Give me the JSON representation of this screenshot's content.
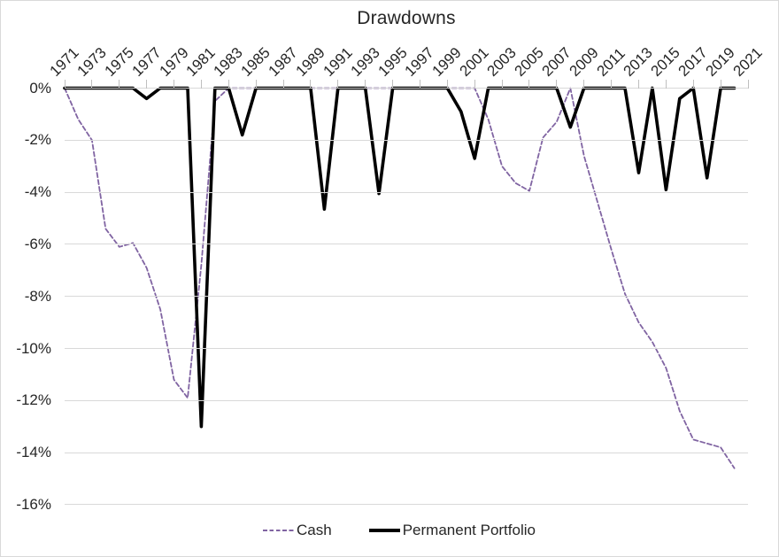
{
  "frame": {
    "background": "#ffffff",
    "border_color": "#d9d9d9"
  },
  "chart_data": {
    "type": "line",
    "title": "Drawdowns",
    "x_axis": {
      "position": "top",
      "range": [
        1971,
        2021
      ],
      "tick_interval_years": 2,
      "tick_labels": [
        "1971",
        "1973",
        "1975",
        "1977",
        "1979",
        "1981",
        "1983",
        "1985",
        "1987",
        "1989",
        "1991",
        "1993",
        "1995",
        "1997",
        "1999",
        "2001",
        "2003",
        "2005",
        "2007",
        "2009",
        "2011",
        "2013",
        "2015",
        "2017",
        "2019",
        "2021"
      ],
      "tick_color": "#bfbfbf",
      "label_color": "#262626"
    },
    "y_axis": {
      "range": [
        -16,
        0
      ],
      "unit": "percent",
      "tick_labels": [
        "0%",
        "-2%",
        "-4%",
        "-6%",
        "-8%",
        "-10%",
        "-12%",
        "-14%",
        "-16%"
      ],
      "gridlines": true,
      "gridline_color": "#d9d9d9",
      "label_color": "#262626"
    },
    "x": [
      1971,
      1972,
      1973,
      1974,
      1975,
      1976,
      1977,
      1978,
      1979,
      1980,
      1981,
      1982,
      1983,
      1984,
      1985,
      1986,
      1987,
      1988,
      1989,
      1990,
      1991,
      1992,
      1993,
      1994,
      1995,
      1996,
      1997,
      1998,
      1999,
      2000,
      2001,
      2002,
      2003,
      2004,
      2005,
      2006,
      2007,
      2008,
      2009,
      2010,
      2011,
      2012,
      2013,
      2014,
      2015,
      2016,
      2017,
      2018,
      2019,
      2020
    ],
    "series": [
      {
        "name": "Cash",
        "color": "#8064A2",
        "line_style": "dashed",
        "values": [
          0,
          -1.2,
          -2.0,
          -5.4,
          -6.1,
          -5.95,
          -6.9,
          -8.5,
          -11.2,
          -11.9,
          -6.8,
          -0.5,
          0,
          0,
          0,
          0,
          0,
          0,
          0,
          0,
          0,
          0,
          0,
          0,
          0,
          0,
          0,
          0,
          0,
          0,
          0,
          -1.2,
          -3.0,
          -3.65,
          -3.95,
          -1.9,
          -1.3,
          0,
          -2.6,
          -4.4,
          -6.2,
          -7.9,
          -9.0,
          -9.75,
          -10.75,
          -12.4,
          -13.5,
          -13.65,
          -13.8,
          -14.6
        ]
      },
      {
        "name": "Permanent Portfolio",
        "color": "#000000",
        "line_style": "solid",
        "values": [
          0,
          0,
          0,
          0,
          0,
          0,
          -0.4,
          0,
          0,
          0,
          -13.0,
          0,
          0,
          -1.8,
          0,
          0,
          0,
          0,
          0,
          -4.65,
          0,
          0,
          0,
          -4.05,
          0,
          0,
          0,
          0,
          0,
          -0.9,
          -2.7,
          0,
          0,
          0,
          0,
          0,
          0,
          -1.5,
          0,
          0,
          0,
          0,
          -3.25,
          0,
          -3.9,
          -0.4,
          0,
          -3.45,
          0,
          0
        ]
      }
    ],
    "legend": {
      "position": "bottom",
      "items": [
        "Cash",
        "Permanent Portfolio"
      ]
    }
  }
}
